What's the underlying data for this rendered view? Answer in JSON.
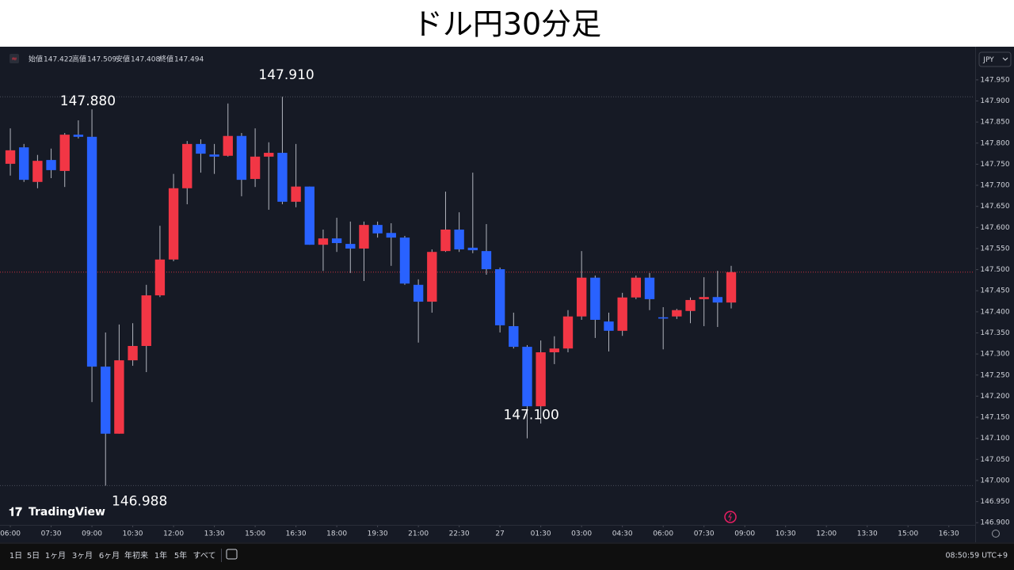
{
  "header": {
    "title": "ドル円30分足"
  },
  "chart_data": {
    "type": "candlestick",
    "ohlc_header": [
      {
        "label": "始値",
        "value": 147.422
      },
      {
        "label": "高値",
        "value": 147.509
      },
      {
        "label": "安値",
        "value": 147.408
      },
      {
        "label": "終値",
        "value": 147.494
      }
    ],
    "currency": "JPY",
    "brand": "TradingView",
    "up_color": "#f23645",
    "down_color": "#2962ff",
    "open": [
      147.751,
      147.79,
      147.708,
      147.76,
      147.734,
      147.82,
      147.815,
      147.27,
      147.111,
      147.285,
      147.319,
      147.439,
      147.524,
      147.693,
      147.798,
      147.773,
      147.77,
      147.817,
      147.715,
      147.768,
      147.777,
      147.661,
      147.697,
      147.559,
      147.574,
      147.561,
      147.55,
      147.606,
      147.587,
      147.576,
      147.464,
      147.424,
      147.544,
      147.595,
      147.552,
      147.544,
      147.501,
      147.366,
      147.317,
      147.176,
      147.304,
      147.313,
      147.389,
      147.481,
      147.377,
      147.355,
      147.434,
      147.481,
      147.387,
      147.389,
      147.402,
      147.43,
      147.435,
      147.422
    ],
    "high": [
      147.835,
      147.798,
      147.772,
      147.787,
      147.824,
      147.854,
      147.88,
      147.351,
      147.37,
      147.373,
      147.464,
      147.604,
      147.727,
      147.805,
      147.809,
      147.798,
      147.894,
      147.824,
      147.835,
      147.802,
      147.91,
      147.798,
      147.697,
      147.595,
      147.623,
      147.614,
      147.614,
      147.614,
      147.61,
      147.58,
      147.477,
      147.548,
      147.685,
      147.636,
      147.73,
      147.608,
      147.505,
      147.398,
      147.321,
      147.332,
      147.342,
      147.404,
      147.544,
      147.486,
      147.398,
      147.445,
      147.486,
      147.492,
      147.411,
      147.407,
      147.434,
      147.482,
      147.497,
      147.509
    ],
    "low": [
      147.723,
      147.708,
      147.693,
      147.717,
      147.696,
      147.811,
      147.186,
      146.988,
      147.111,
      147.272,
      147.257,
      147.435,
      147.52,
      147.655,
      147.73,
      147.727,
      147.768,
      147.674,
      147.696,
      147.642,
      147.655,
      147.648,
      147.559,
      147.497,
      147.542,
      147.492,
      147.473,
      147.576,
      147.509,
      147.464,
      147.327,
      147.398,
      147.542,
      147.542,
      147.539,
      147.488,
      147.351,
      147.313,
      147.1,
      147.135,
      147.276,
      147.304,
      147.381,
      147.338,
      147.306,
      147.343,
      147.43,
      147.404,
      147.311,
      147.383,
      147.373,
      147.366,
      147.364,
      147.408
    ],
    "close": [
      147.783,
      147.713,
      147.758,
      147.736,
      147.82,
      147.815,
      147.27,
      147.111,
      147.285,
      147.319,
      147.439,
      147.524,
      147.693,
      147.798,
      147.775,
      147.768,
      147.817,
      147.713,
      147.768,
      147.777,
      147.661,
      147.697,
      147.559,
      147.574,
      147.563,
      147.55,
      147.606,
      147.586,
      147.576,
      147.467,
      147.424,
      147.542,
      147.595,
      147.548,
      147.546,
      147.501,
      147.368,
      147.317,
      147.176,
      147.304,
      147.313,
      147.389,
      147.481,
      147.381,
      147.355,
      147.434,
      147.481,
      147.43,
      147.384,
      147.404,
      147.428,
      147.435,
      147.422,
      147.494
    ],
    "annotations": [
      {
        "value": 147.88,
        "label": "147.880"
      },
      {
        "value": 147.91,
        "label": "147.910"
      },
      {
        "value": 146.988,
        "label": "146.988"
      },
      {
        "value": 147.1,
        "label": "147.100"
      }
    ],
    "ylim": [
      146.891,
      148.023
    ],
    "yticks": [
      {
        "value": 146.9,
        "label": "146.900"
      },
      {
        "value": 146.95,
        "label": "146.950"
      },
      {
        "value": 147.0,
        "label": "147.000"
      },
      {
        "value": 147.05,
        "label": "147.050"
      },
      {
        "value": 147.1,
        "label": "147.100"
      },
      {
        "value": 147.15,
        "label": "147.150"
      },
      {
        "value": 147.2,
        "label": "147.200"
      },
      {
        "value": 147.25,
        "label": "147.250"
      },
      {
        "value": 147.3,
        "label": "147.300"
      },
      {
        "value": 147.35,
        "label": "147.350"
      },
      {
        "value": 147.4,
        "label": "147.400"
      },
      {
        "value": 147.45,
        "label": "147.450"
      },
      {
        "value": 147.5,
        "label": "147.500"
      },
      {
        "value": 147.55,
        "label": "147.550"
      },
      {
        "value": 147.6,
        "label": "147.600"
      },
      {
        "value": 147.65,
        "label": "147.650"
      },
      {
        "value": 147.7,
        "label": "147.700"
      },
      {
        "value": 147.75,
        "label": "147.750"
      },
      {
        "value": 147.8,
        "label": "147.800"
      },
      {
        "value": 147.85,
        "label": "147.850"
      },
      {
        "value": 147.9,
        "label": "147.900"
      },
      {
        "value": 147.95,
        "label": "147.950"
      }
    ],
    "xlim": [
      -0.76,
      70.88
    ],
    "xticks": [
      {
        "value": 0,
        "label": "06:00"
      },
      {
        "value": 3,
        "label": "07:30"
      },
      {
        "value": 6,
        "label": "09:00"
      },
      {
        "value": 9,
        "label": "10:30"
      },
      {
        "value": 12,
        "label": "12:00"
      },
      {
        "value": 15,
        "label": "13:30"
      },
      {
        "value": 18,
        "label": "15:00"
      },
      {
        "value": 21,
        "label": "16:30"
      },
      {
        "value": 24,
        "label": "18:00"
      },
      {
        "value": 27,
        "label": "19:30"
      },
      {
        "value": 30,
        "label": "21:00"
      },
      {
        "value": 33,
        "label": "22:30"
      },
      {
        "value": 36,
        "label": "27"
      },
      {
        "value": 39,
        "label": "01:30"
      },
      {
        "value": 42,
        "label": "03:00"
      },
      {
        "value": 45,
        "label": "04:30"
      },
      {
        "value": 48,
        "label": "06:00"
      },
      {
        "value": 51,
        "label": "07:30"
      },
      {
        "value": 54,
        "label": "09:00"
      },
      {
        "value": 57,
        "label": "10:30"
      },
      {
        "value": 60,
        "label": "12:00"
      },
      {
        "value": 63,
        "label": "13:30"
      },
      {
        "value": 66,
        "label": "15:00"
      },
      {
        "value": 69,
        "label": "16:30"
      }
    ],
    "grid": false
  },
  "toolbar": {
    "ranges": [
      "1日",
      "5日",
      "1ヶ月",
      "3ヶ月",
      "6ヶ月",
      "年初来",
      "1年",
      "5年",
      "すべて"
    ],
    "clock": "08:50:59 UTC+9"
  }
}
